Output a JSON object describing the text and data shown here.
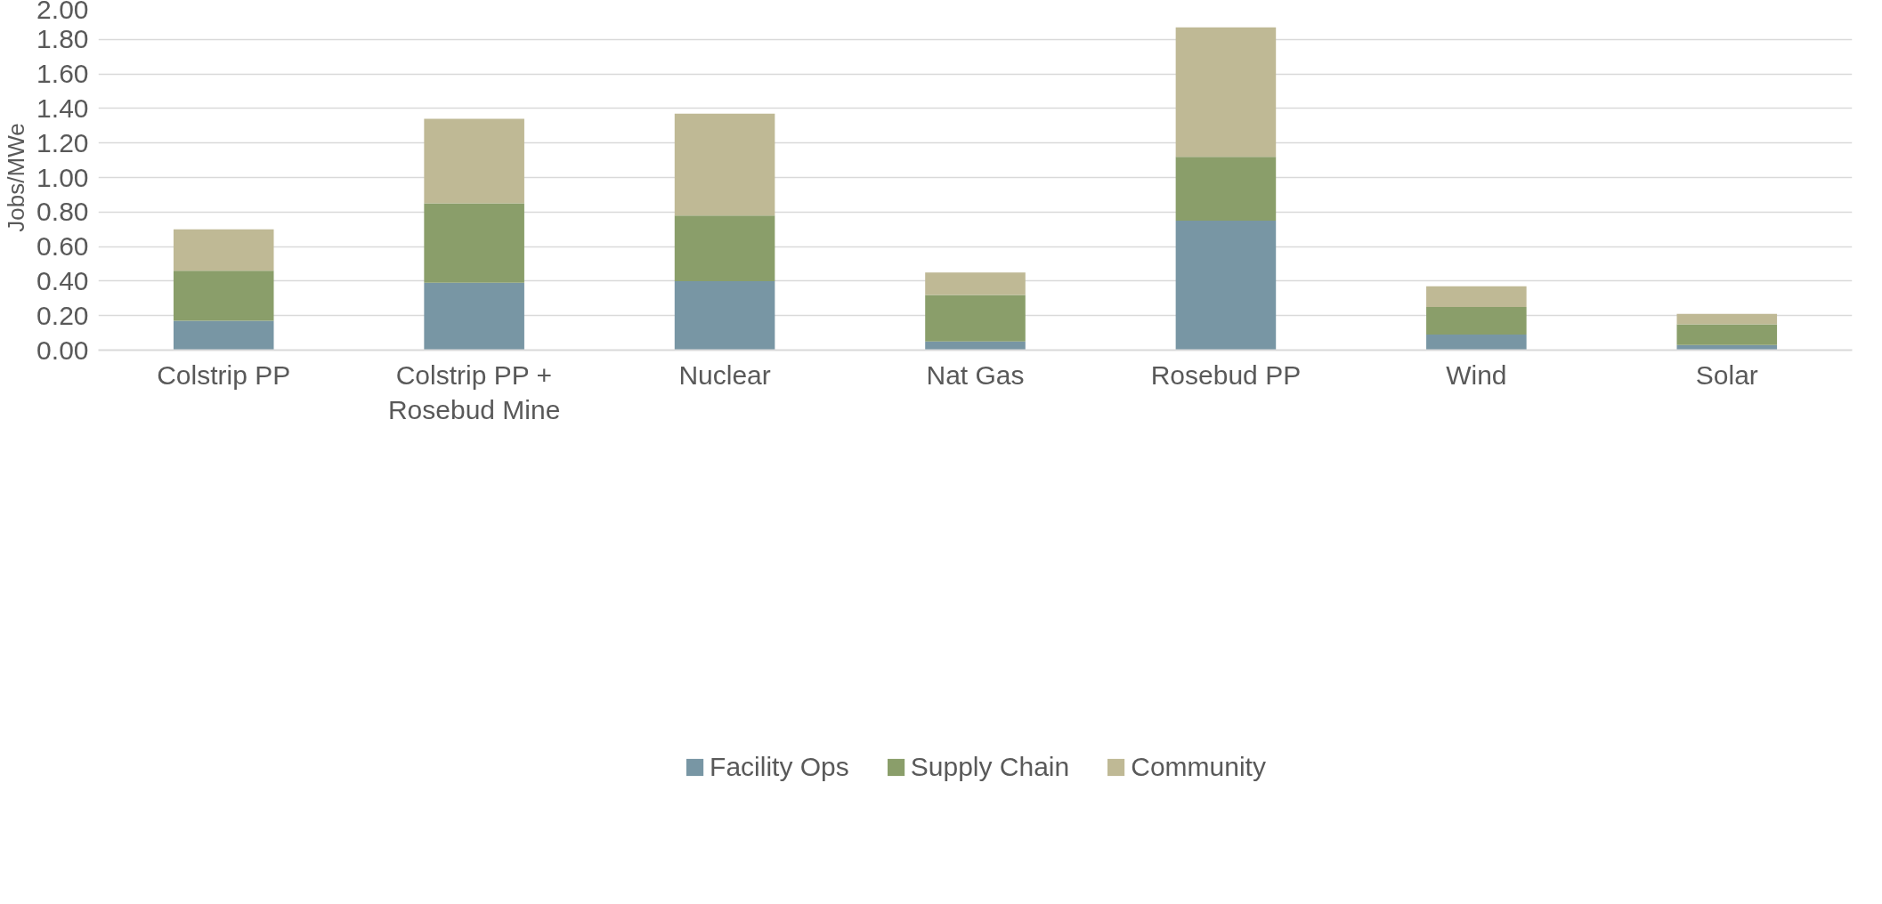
{
  "chart_data": {
    "type": "bar",
    "stacked": true,
    "ylabel": "Jobs/MWe",
    "categories": [
      "Colstrip PP",
      "Colstrip PP + Rosebud Mine",
      "Nuclear",
      "Nat Gas",
      "Rosebud PP",
      "Wind",
      "Solar"
    ],
    "series": [
      {
        "name": "Facility Ops",
        "color": "#7896a4",
        "values": [
          0.17,
          0.39,
          0.4,
          0.05,
          0.75,
          0.09,
          0.03
        ]
      },
      {
        "name": "Supply Chain",
        "color": "#8a9e6a",
        "values": [
          0.29,
          0.46,
          0.38,
          0.27,
          0.37,
          0.16,
          0.12
        ]
      },
      {
        "name": "Community",
        "color": "#bfb995",
        "values": [
          0.24,
          0.49,
          0.59,
          0.13,
          0.75,
          0.12,
          0.06
        ]
      }
    ],
    "ylim": [
      0,
      2
    ],
    "yticks": [
      {
        "value": 0,
        "label": "0.00"
      },
      {
        "value": 0.2,
        "label": "0.20"
      },
      {
        "value": 0.4,
        "label": "0.40"
      },
      {
        "value": 0.6,
        "label": "0.60"
      },
      {
        "value": 0.8,
        "label": "0.80"
      },
      {
        "value": 1.0,
        "label": "1.00"
      },
      {
        "value": 1.2,
        "label": "1.20"
      },
      {
        "value": 1.4,
        "label": "1.40"
      },
      {
        "value": 1.6,
        "label": "1.60"
      },
      {
        "value": 1.8,
        "label": "1.80"
      },
      {
        "value": 2.0,
        "label": "2.00"
      }
    ],
    "grid": "y",
    "legend": "bottom"
  }
}
